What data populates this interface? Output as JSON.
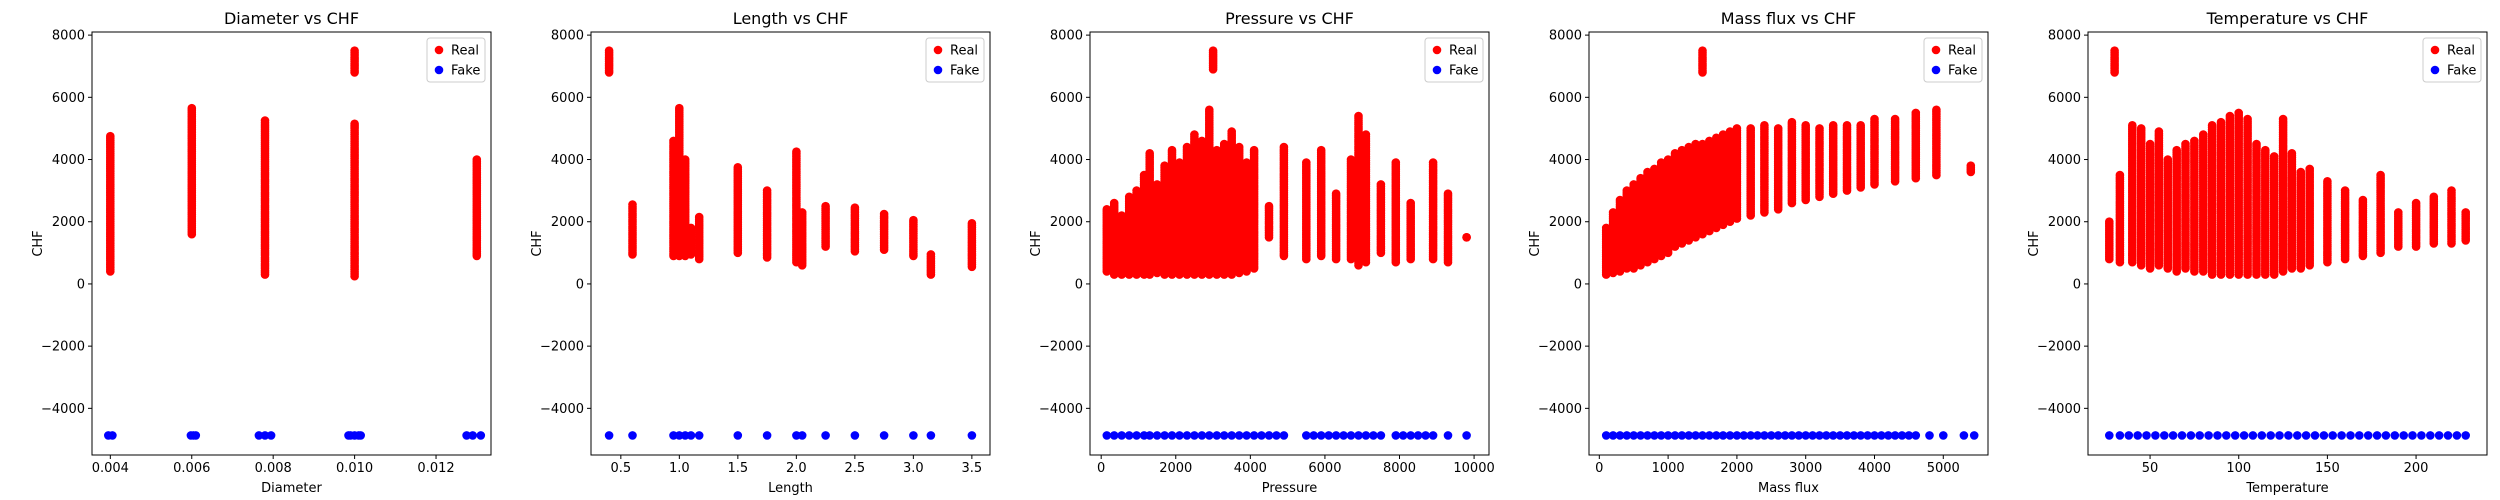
{
  "legend_labels": [
    "Real",
    "Fake"
  ],
  "colors": {
    "real": "#ff0000",
    "fake": "#0000ff"
  },
  "chart_data": [
    {
      "type": "scatter",
      "title": "Diameter vs CHF",
      "xlabel": "Diameter",
      "ylabel": "CHF",
      "xlim": [
        0.00355,
        0.01335
      ],
      "ylim": [
        -5500,
        8100
      ],
      "xticks": [
        0.004,
        0.006,
        0.008,
        0.01,
        0.012
      ],
      "xtick_labels": [
        "0.004",
        "0.006",
        "0.008",
        "0.010",
        "0.012"
      ],
      "yticks": [
        -4000,
        -2000,
        0,
        2000,
        4000,
        6000,
        8000
      ],
      "ytick_labels": [
        "−4000",
        "−2000",
        "0",
        "2000",
        "4000",
        "6000",
        "8000"
      ],
      "legend": "top-right",
      "real_groups": [
        {
          "x": 0.004,
          "y": [
            400,
            4750
          ]
        },
        {
          "x": 0.006,
          "y": [
            1600,
            5650
          ]
        },
        {
          "x": 0.0078,
          "y": [
            300,
            5250
          ]
        },
        {
          "x": 0.01,
          "y": [
            250,
            5150
          ]
        },
        {
          "x": 0.01,
          "y": [
            6800,
            7500
          ]
        },
        {
          "x": 0.013,
          "y": [
            900,
            4000
          ]
        }
      ],
      "fake_x": [
        0.00395,
        0.00405,
        0.00598,
        0.00604,
        0.0061,
        0.00765,
        0.0078,
        0.00795,
        0.00985,
        0.0099,
        0.01,
        0.0101,
        0.01015,
        0.01275,
        0.0129,
        0.0131
      ],
      "fake_y": -4870
    },
    {
      "type": "scatter",
      "title": "Length vs CHF",
      "xlabel": "Length",
      "ylabel": "CHF",
      "xlim": [
        0.245,
        3.655
      ],
      "ylim": [
        -5500,
        8100
      ],
      "xticks": [
        0.5,
        1.0,
        1.5,
        2.0,
        2.5,
        3.0,
        3.5
      ],
      "xtick_labels": [
        "0.5",
        "1.0",
        "1.5",
        "2.0",
        "2.5",
        "3.0",
        "3.5"
      ],
      "yticks": [
        -4000,
        -2000,
        0,
        2000,
        4000,
        6000,
        8000
      ],
      "ytick_labels": [
        "−4000",
        "−2000",
        "0",
        "2000",
        "4000",
        "6000",
        "8000"
      ],
      "legend": "top-right",
      "real_groups": [
        {
          "x": 0.4,
          "y": [
            6800,
            7500
          ]
        },
        {
          "x": 0.6,
          "y": [
            950,
            2550
          ]
        },
        {
          "x": 0.95,
          "y": [
            900,
            4600
          ]
        },
        {
          "x": 1.0,
          "y": [
            900,
            5650
          ]
        },
        {
          "x": 1.05,
          "y": [
            900,
            4000
          ]
        },
        {
          "x": 1.1,
          "y": [
            950,
            1800
          ]
        },
        {
          "x": 1.17,
          "y": [
            800,
            2150
          ]
        },
        {
          "x": 1.5,
          "y": [
            1000,
            3750
          ]
        },
        {
          "x": 1.75,
          "y": [
            850,
            3000
          ]
        },
        {
          "x": 2.0,
          "y": [
            700,
            4250
          ]
        },
        {
          "x": 2.05,
          "y": [
            600,
            2300
          ]
        },
        {
          "x": 2.25,
          "y": [
            1200,
            2500
          ]
        },
        {
          "x": 2.5,
          "y": [
            1050,
            2450
          ]
        },
        {
          "x": 2.75,
          "y": [
            1100,
            2250
          ]
        },
        {
          "x": 3.0,
          "y": [
            900,
            2050
          ]
        },
        {
          "x": 3.15,
          "y": [
            300,
            950
          ]
        },
        {
          "x": 3.5,
          "y": [
            550,
            1950
          ]
        }
      ],
      "fake_x": [
        0.4,
        0.6,
        0.95,
        1.0,
        1.05,
        1.1,
        1.17,
        1.5,
        1.75,
        2.0,
        2.05,
        2.25,
        2.5,
        2.75,
        3.0,
        3.15,
        3.5
      ],
      "fake_y": -4870
    },
    {
      "type": "scatter",
      "title": "Pressure vs CHF",
      "xlabel": "Pressure",
      "ylabel": "CHF",
      "xlim": [
        -300,
        10400
      ],
      "ylim": [
        -5500,
        8100
      ],
      "xticks": [
        0,
        2000,
        4000,
        6000,
        8000,
        10000
      ],
      "xtick_labels": [
        "0",
        "2000",
        "4000",
        "6000",
        "8000",
        "10000"
      ],
      "yticks": [
        -4000,
        -2000,
        0,
        2000,
        4000,
        6000,
        8000
      ],
      "ytick_labels": [
        "−4000",
        "−2000",
        "0",
        "2000",
        "4000",
        "6000",
        "8000"
      ],
      "legend": "top-right",
      "real_groups": [
        {
          "x": 150,
          "y": [
            400,
            2400
          ]
        },
        {
          "x": 350,
          "y": [
            300,
            2600
          ]
        },
        {
          "x": 550,
          "y": [
            300,
            2200
          ]
        },
        {
          "x": 750,
          "y": [
            300,
            2800
          ]
        },
        {
          "x": 950,
          "y": [
            300,
            3000
          ]
        },
        {
          "x": 1150,
          "y": [
            300,
            3500
          ]
        },
        {
          "x": 1300,
          "y": [
            300,
            4200
          ]
        },
        {
          "x": 1500,
          "y": [
            350,
            3200
          ]
        },
        {
          "x": 1700,
          "y": [
            300,
            3800
          ]
        },
        {
          "x": 1900,
          "y": [
            300,
            4300
          ]
        },
        {
          "x": 2100,
          "y": [
            300,
            3900
          ]
        },
        {
          "x": 2300,
          "y": [
            300,
            4400
          ]
        },
        {
          "x": 2500,
          "y": [
            300,
            4800
          ]
        },
        {
          "x": 2700,
          "y": [
            300,
            4600
          ]
        },
        {
          "x": 2900,
          "y": [
            300,
            5600
          ]
        },
        {
          "x": 3000,
          "y": [
            6900,
            7500
          ]
        },
        {
          "x": 3100,
          "y": [
            300,
            4300
          ]
        },
        {
          "x": 3300,
          "y": [
            300,
            4500
          ]
        },
        {
          "x": 3500,
          "y": [
            300,
            4900
          ]
        },
        {
          "x": 3700,
          "y": [
            350,
            4400
          ]
        },
        {
          "x": 3900,
          "y": [
            400,
            3900
          ]
        },
        {
          "x": 4100,
          "y": [
            500,
            4300
          ]
        },
        {
          "x": 4500,
          "y": [
            1500,
            2500
          ]
        },
        {
          "x": 4900,
          "y": [
            900,
            4400
          ]
        },
        {
          "x": 5500,
          "y": [
            800,
            3900
          ]
        },
        {
          "x": 5900,
          "y": [
            900,
            4300
          ]
        },
        {
          "x": 6300,
          "y": [
            800,
            2900
          ]
        },
        {
          "x": 6700,
          "y": [
            800,
            4000
          ]
        },
        {
          "x": 6900,
          "y": [
            600,
            5400
          ]
        },
        {
          "x": 7100,
          "y": [
            700,
            4800
          ]
        },
        {
          "x": 7500,
          "y": [
            1000,
            3200
          ]
        },
        {
          "x": 7900,
          "y": [
            700,
            3900
          ]
        },
        {
          "x": 8300,
          "y": [
            800,
            2600
          ]
        },
        {
          "x": 8900,
          "y": [
            800,
            3900
          ]
        },
        {
          "x": 9300,
          "y": [
            700,
            2900
          ]
        },
        {
          "x": 9800,
          "y": [
            1500,
            1500
          ]
        }
      ],
      "fake_x": [
        150,
        350,
        550,
        750,
        950,
        1150,
        1300,
        1500,
        1700,
        1900,
        2100,
        2300,
        2500,
        2700,
        2900,
        3100,
        3300,
        3500,
        3700,
        3900,
        4100,
        4300,
        4500,
        4700,
        4900,
        5500,
        5700,
        5900,
        6100,
        6300,
        6500,
        6700,
        6900,
        7100,
        7300,
        7500,
        7900,
        8100,
        8300,
        8500,
        8700,
        8900,
        9300,
        9800
      ],
      "fake_y": -4870
    },
    {
      "type": "scatter",
      "title": "Mass flux vs CHF",
      "xlabel": "Mass flux",
      "ylabel": "CHF",
      "xlim": [
        -150,
        5650
      ],
      "ylim": [
        -5500,
        8100
      ],
      "xticks": [
        0,
        1000,
        2000,
        3000,
        4000,
        5000
      ],
      "xtick_labels": [
        "0",
        "1000",
        "2000",
        "3000",
        "4000",
        "5000"
      ],
      "yticks": [
        -4000,
        -2000,
        0,
        2000,
        4000,
        6000,
        8000
      ],
      "ytick_labels": [
        "−4000",
        "−2000",
        "0",
        "2000",
        "4000",
        "6000",
        "8000"
      ],
      "legend": "top-right",
      "real_groups": [
        {
          "x": 100,
          "y": [
            300,
            1800
          ]
        },
        {
          "x": 200,
          "y": [
            350,
            2300
          ]
        },
        {
          "x": 300,
          "y": [
            400,
            2700
          ]
        },
        {
          "x": 400,
          "y": [
            500,
            3000
          ]
        },
        {
          "x": 500,
          "y": [
            500,
            3200
          ]
        },
        {
          "x": 600,
          "y": [
            600,
            3400
          ]
        },
        {
          "x": 700,
          "y": [
            700,
            3600
          ]
        },
        {
          "x": 800,
          "y": [
            800,
            3700
          ]
        },
        {
          "x": 900,
          "y": [
            900,
            3900
          ]
        },
        {
          "x": 1000,
          "y": [
            1000,
            4000
          ]
        },
        {
          "x": 1100,
          "y": [
            1200,
            4200
          ]
        },
        {
          "x": 1200,
          "y": [
            1300,
            4300
          ]
        },
        {
          "x": 1300,
          "y": [
            1400,
            4400
          ]
        },
        {
          "x": 1400,
          "y": [
            1500,
            4500
          ]
        },
        {
          "x": 1500,
          "y": [
            1600,
            4500
          ]
        },
        {
          "x": 1600,
          "y": [
            1700,
            4600
          ]
        },
        {
          "x": 1700,
          "y": [
            1800,
            4700
          ]
        },
        {
          "x": 1800,
          "y": [
            1900,
            4800
          ]
        },
        {
          "x": 1900,
          "y": [
            2000,
            4900
          ]
        },
        {
          "x": 2000,
          "y": [
            2100,
            5000
          ]
        },
        {
          "x": 2200,
          "y": [
            2200,
            5000
          ]
        },
        {
          "x": 2400,
          "y": [
            2300,
            5100
          ]
        },
        {
          "x": 2600,
          "y": [
            2400,
            5000
          ]
        },
        {
          "x": 2800,
          "y": [
            2600,
            5200
          ]
        },
        {
          "x": 3000,
          "y": [
            2700,
            5100
          ]
        },
        {
          "x": 3200,
          "y": [
            2800,
            5000
          ]
        },
        {
          "x": 3400,
          "y": [
            2900,
            5100
          ]
        },
        {
          "x": 3600,
          "y": [
            3000,
            5100
          ]
        },
        {
          "x": 3800,
          "y": [
            3100,
            5100
          ]
        },
        {
          "x": 4000,
          "y": [
            3200,
            5300
          ]
        },
        {
          "x": 4300,
          "y": [
            3300,
            5300
          ]
        },
        {
          "x": 4600,
          "y": [
            3400,
            5500
          ]
        },
        {
          "x": 4900,
          "y": [
            3500,
            5600
          ]
        },
        {
          "x": 5400,
          "y": [
            3600,
            3800
          ]
        },
        {
          "x": 1500,
          "y": [
            6800,
            7500
          ]
        }
      ],
      "fake_x": [
        100,
        200,
        300,
        400,
        500,
        600,
        700,
        800,
        900,
        1000,
        1100,
        1200,
        1300,
        1400,
        1500,
        1600,
        1700,
        1800,
        1900,
        2000,
        2100,
        2200,
        2300,
        2400,
        2500,
        2600,
        2700,
        2800,
        2900,
        3000,
        3100,
        3200,
        3300,
        3400,
        3500,
        3600,
        3700,
        3800,
        3900,
        4000,
        4100,
        4200,
        4300,
        4400,
        4500,
        4600,
        4800,
        5000,
        5300,
        5450
      ],
      "fake_y": -4870
    },
    {
      "type": "scatter",
      "title": "Temperature vs CHF",
      "xlabel": "Temperature",
      "ylabel": "CHF",
      "xlim": [
        15,
        240
      ],
      "ylim": [
        -5500,
        8100
      ],
      "xticks": [
        50,
        100,
        150,
        200
      ],
      "xtick_labels": [
        "50",
        "100",
        "150",
        "200"
      ],
      "yticks": [
        -4000,
        -2000,
        0,
        2000,
        4000,
        6000,
        8000
      ],
      "ytick_labels": [
        "−4000",
        "−2000",
        "0",
        "2000",
        "4000",
        "6000",
        "8000"
      ],
      "legend": "top-right",
      "real_groups": [
        {
          "x": 27,
          "y": [
            800,
            2000
          ]
        },
        {
          "x": 30,
          "y": [
            6800,
            7500
          ]
        },
        {
          "x": 33,
          "y": [
            700,
            3500
          ]
        },
        {
          "x": 40,
          "y": [
            700,
            5100
          ]
        },
        {
          "x": 45,
          "y": [
            600,
            5000
          ]
        },
        {
          "x": 50,
          "y": [
            500,
            4500
          ]
        },
        {
          "x": 55,
          "y": [
            600,
            4900
          ]
        },
        {
          "x": 60,
          "y": [
            500,
            4000
          ]
        },
        {
          "x": 65,
          "y": [
            400,
            4300
          ]
        },
        {
          "x": 70,
          "y": [
            500,
            4500
          ]
        },
        {
          "x": 75,
          "y": [
            400,
            4600
          ]
        },
        {
          "x": 80,
          "y": [
            400,
            4800
          ]
        },
        {
          "x": 85,
          "y": [
            300,
            5100
          ]
        },
        {
          "x": 90,
          "y": [
            300,
            5200
          ]
        },
        {
          "x": 95,
          "y": [
            300,
            5400
          ]
        },
        {
          "x": 100,
          "y": [
            300,
            5500
          ]
        },
        {
          "x": 105,
          "y": [
            300,
            5300
          ]
        },
        {
          "x": 110,
          "y": [
            300,
            4500
          ]
        },
        {
          "x": 115,
          "y": [
            300,
            4300
          ]
        },
        {
          "x": 120,
          "y": [
            300,
            4100
          ]
        },
        {
          "x": 125,
          "y": [
            400,
            5300
          ]
        },
        {
          "x": 130,
          "y": [
            500,
            4200
          ]
        },
        {
          "x": 135,
          "y": [
            500,
            3600
          ]
        },
        {
          "x": 140,
          "y": [
            600,
            3700
          ]
        },
        {
          "x": 150,
          "y": [
            700,
            3300
          ]
        },
        {
          "x": 160,
          "y": [
            800,
            3000
          ]
        },
        {
          "x": 170,
          "y": [
            900,
            2700
          ]
        },
        {
          "x": 180,
          "y": [
            1000,
            3500
          ]
        },
        {
          "x": 190,
          "y": [
            1200,
            2300
          ]
        },
        {
          "x": 200,
          "y": [
            1200,
            2600
          ]
        },
        {
          "x": 210,
          "y": [
            1300,
            2800
          ]
        },
        {
          "x": 220,
          "y": [
            1300,
            3000
          ]
        },
        {
          "x": 228,
          "y": [
            1400,
            2300
          ]
        }
      ],
      "fake_x": [
        27,
        33,
        38,
        43,
        48,
        53,
        58,
        63,
        68,
        73,
        78,
        83,
        88,
        93,
        98,
        103,
        108,
        113,
        118,
        123,
        128,
        133,
        138,
        143,
        148,
        153,
        158,
        163,
        168,
        173,
        178,
        183,
        188,
        193,
        198,
        203,
        208,
        213,
        218,
        223,
        228
      ],
      "fake_y": -4870
    }
  ]
}
